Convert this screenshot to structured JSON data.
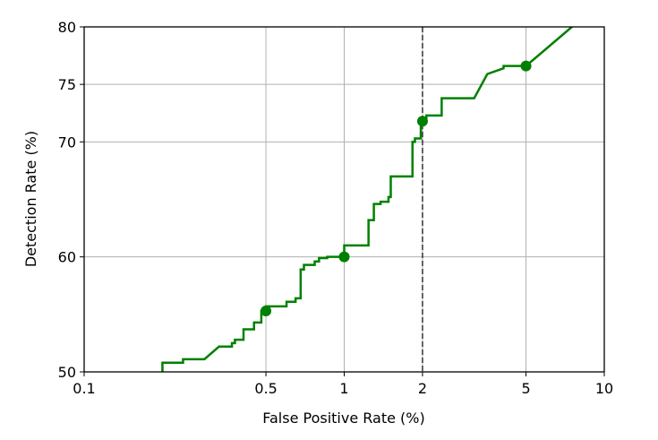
{
  "chart_data": {
    "type": "line",
    "title": "",
    "xlabel": "False Positive Rate (%)",
    "ylabel": "Detection Rate (%)",
    "x_scale": "log",
    "xlim": [
      0.1,
      10
    ],
    "ylim": [
      50,
      80
    ],
    "grid": true,
    "x_ticks": [
      {
        "value": 0.1,
        "label": "0.1"
      },
      {
        "value": 0.5,
        "label": "0.5"
      },
      {
        "value": 1,
        "label": "1"
      },
      {
        "value": 2,
        "label": "2"
      },
      {
        "value": 5,
        "label": "5"
      },
      {
        "value": 10,
        "label": "10"
      }
    ],
    "y_ticks": [
      {
        "value": 50,
        "label": "50"
      },
      {
        "value": 60,
        "label": "60"
      },
      {
        "value": 70,
        "label": "70"
      },
      {
        "value": 75,
        "label": "75"
      },
      {
        "value": 80,
        "label": "80"
      }
    ],
    "line_color": "#008000",
    "reference_line": {
      "x": 2,
      "style": "dashed",
      "color": "#333333"
    },
    "series": [
      {
        "x": [
          0.2,
          0.2,
          0.22,
          0.22,
          0.24,
          0.24,
          0.29,
          0.33,
          0.37,
          0.37,
          0.38,
          0.38,
          0.41,
          0.41,
          0.45,
          0.45,
          0.48,
          0.48,
          0.5,
          0.5,
          0.6,
          0.6,
          0.65,
          0.65,
          0.68,
          0.68,
          0.7,
          0.7,
          0.77,
          0.77,
          0.8,
          0.8,
          0.86,
          0.86,
          0.9,
          0.9,
          1.0,
          1.0,
          1.24,
          1.24,
          1.3,
          1.3,
          1.38,
          1.38,
          1.48,
          1.48,
          1.51,
          1.51,
          1.55,
          1.55,
          1.83,
          1.83,
          1.87,
          1.87,
          1.97,
          1.97,
          2.07,
          2.07,
          2.16,
          2.16,
          2.37,
          2.37,
          3.16,
          3.55,
          4.1,
          4.1,
          4.9,
          5.0,
          7.6
        ],
        "y": [
          50,
          50.8,
          50.8,
          50.8,
          50.8,
          51.1,
          51.1,
          52.2,
          52.2,
          52.5,
          52.5,
          52.8,
          52.8,
          53.7,
          53.7,
          54.3,
          54.3,
          55.3,
          55.3,
          55.7,
          55.7,
          56.1,
          56.1,
          56.4,
          56.4,
          58.9,
          58.9,
          59.3,
          59.3,
          59.6,
          59.6,
          59.9,
          59.9,
          60.0,
          60.0,
          60.0,
          60.0,
          61.0,
          61.0,
          63.2,
          63.2,
          64.6,
          64.6,
          64.8,
          64.8,
          65.2,
          65.2,
          67.0,
          67.0,
          67.0,
          67.0,
          70.0,
          70.0,
          70.3,
          70.3,
          71.8,
          71.8,
          72.3,
          72.3,
          72.3,
          72.3,
          73.8,
          73.8,
          75.9,
          76.4,
          76.6,
          76.6,
          76.6,
          80.1
        ]
      }
    ],
    "markers": [
      {
        "x": 0.5,
        "y": 55.3
      },
      {
        "x": 1.0,
        "y": 60.0
      },
      {
        "x": 2.0,
        "y": 71.8
      },
      {
        "x": 5.0,
        "y": 76.6
      }
    ]
  }
}
